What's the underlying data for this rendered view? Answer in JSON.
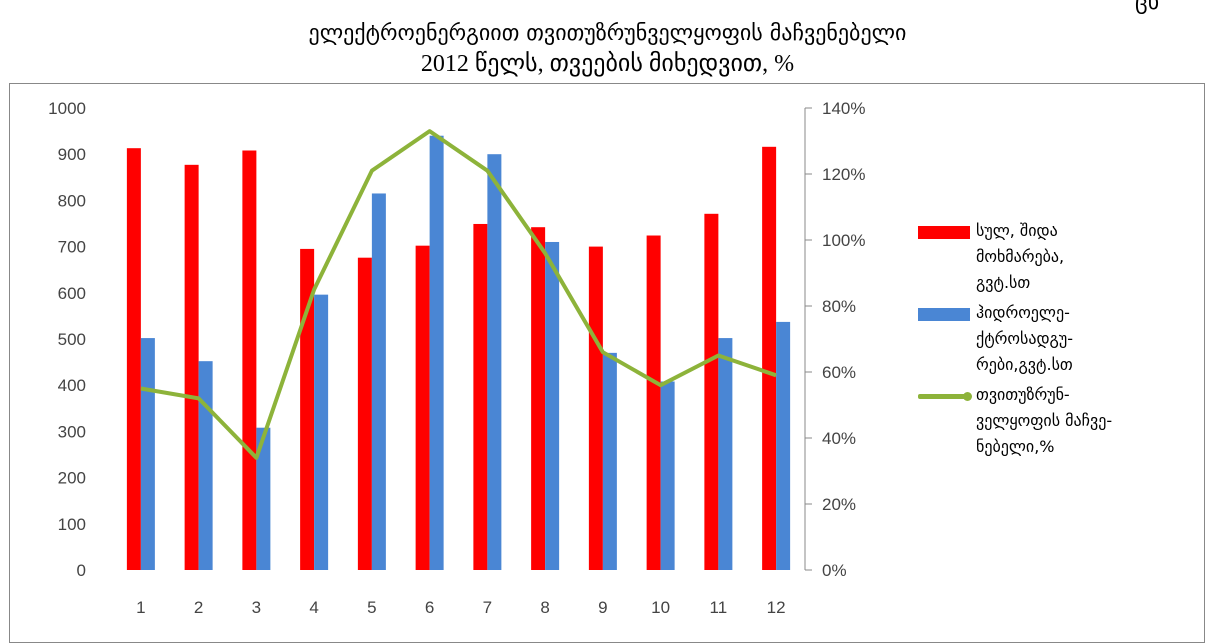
{
  "corner_fragment": "ცხ",
  "chart_data": {
    "type": "bar",
    "title": "ელექტროენერგიით თვითუზრუნველყოფის მაჩვენებელი",
    "subtitle": "2012 წელს, თვეების მიხედვით, %",
    "categories": [
      "1",
      "2",
      "3",
      "4",
      "5",
      "6",
      "7",
      "8",
      "9",
      "10",
      "11",
      "12"
    ],
    "series": [
      {
        "name": "სულ, შიდა მოხმარება, გვტ.სთ",
        "kind": "bar",
        "axis": "left",
        "color": "#ff0000",
        "values": [
          913,
          877,
          908,
          695,
          676,
          702,
          749,
          742,
          700,
          724,
          771,
          916
        ]
      },
      {
        "name": "ჰიდროელე-ქტროსადგუ-რები,გვტ.სთ",
        "kind": "bar",
        "axis": "left",
        "color": "#4a86d4",
        "values": [
          502,
          452,
          308,
          596,
          815,
          940,
          900,
          710,
          470,
          408,
          502,
          537
        ]
      },
      {
        "name": "თვითუზრუნ-ველყოფის მაჩვე-ნებელი,%",
        "kind": "line",
        "axis": "right",
        "color": "#8db33a",
        "values": [
          55,
          52,
          34,
          85,
          121,
          133,
          121,
          96,
          66,
          56,
          65,
          59
        ]
      }
    ],
    "left_axis": {
      "min": 0,
      "max": 1000,
      "ticks": [
        "0",
        "100",
        "200",
        "300",
        "400",
        "500",
        "600",
        "700",
        "800",
        "900",
        "1000"
      ]
    },
    "right_axis": {
      "min": 0,
      "max": 140,
      "ticks": [
        "0%",
        "20%",
        "40%",
        "60%",
        "80%",
        "100%",
        "120%",
        "140%"
      ]
    },
    "grid": false,
    "legend_position": "right"
  },
  "legend": [
    {
      "label": "სულ, შიდა\nმოხმარება,\nგვტ.სთ",
      "color": "#ff0000",
      "kind": "rect"
    },
    {
      "label": "ჰიდროელე-\nქტროსადგუ-\nრები,გვტ.სთ",
      "color": "#4a86d4",
      "kind": "rect"
    },
    {
      "label": "თვითუზრუნ-\nველყოფის მაჩვე-\nნებელი,%",
      "color": "#8db33a",
      "kind": "line"
    }
  ]
}
